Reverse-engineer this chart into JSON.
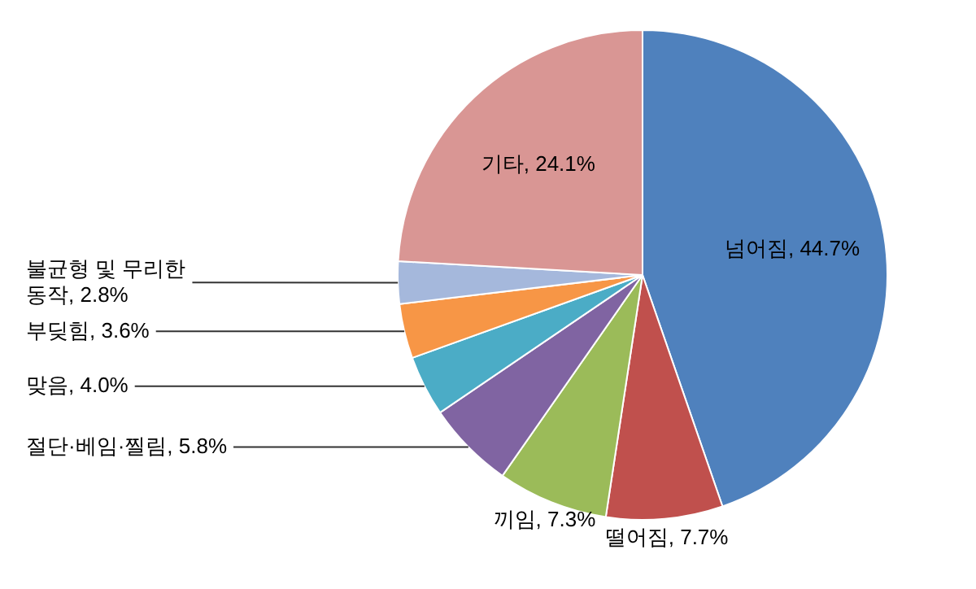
{
  "chart_data": {
    "type": "pie",
    "categories": [
      "넘어짐",
      "떨어짐",
      "끼임",
      "절단·베임·찔림",
      "맞음",
      "부딪힘",
      "불균형 및 무리한 동작",
      "기타"
    ],
    "values": [
      44.7,
      7.7,
      7.3,
      5.8,
      4.0,
      3.6,
      2.8,
      24.1
    ],
    "value_labels": [
      "44.7%",
      "7.7%",
      "7.3%",
      "5.8%",
      "4.0%",
      "3.6%",
      "2.8%",
      "24.1%"
    ],
    "colors": [
      "#4f81bd",
      "#c0504d",
      "#9bbb59",
      "#8064a2",
      "#4bacc6",
      "#f79646",
      "#a5b8dc",
      "#d99694"
    ],
    "legend": false
  }
}
